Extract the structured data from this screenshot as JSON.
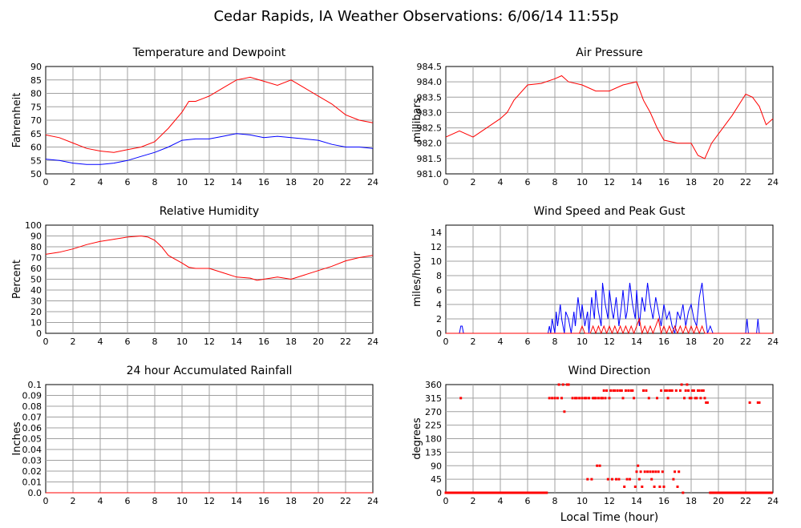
{
  "page": {
    "title": "Cedar Rapids, IA Weather Observations: 6/06/14 11:55p",
    "footer_xlabel": "Local Time (hour)"
  },
  "colors": {
    "red": "#ff0000",
    "blue": "#0000ff",
    "grid": "#a0a0a0",
    "axis": "#000000"
  },
  "chart_data": [
    {
      "id": "temp",
      "type": "line",
      "title": "Temperature and Dewpoint",
      "xlabel": "",
      "ylabel": "Fahrenheit",
      "xlim": [
        0,
        24
      ],
      "ylim": [
        50,
        90
      ],
      "xticks": [
        "0",
        "2",
        "4",
        "6",
        "8",
        "10",
        "12",
        "14",
        "16",
        "18",
        "20",
        "22",
        "24"
      ],
      "yticks": [
        "50",
        "55",
        "60",
        "65",
        "70",
        "75",
        "80",
        "85",
        "90"
      ],
      "grid": true,
      "series": [
        {
          "color": "#ff0000",
          "x": [
            0,
            1,
            2,
            3,
            4,
            5,
            6,
            7,
            8,
            9,
            10,
            10.5,
            11,
            12,
            13,
            14,
            15,
            16,
            17,
            18,
            19,
            20,
            21,
            22,
            23,
            24
          ],
          "y": [
            64.5,
            63.5,
            61.5,
            59.5,
            58.5,
            58,
            59,
            60,
            62,
            67,
            73,
            77,
            77,
            79,
            82,
            85,
            86,
            84.5,
            83,
            85,
            82,
            79,
            76,
            72,
            70,
            69
          ]
        },
        {
          "color": "#0000ff",
          "x": [
            0,
            1,
            2,
            3,
            4,
            5,
            6,
            7,
            8,
            9,
            10,
            11,
            12,
            13,
            14,
            15,
            16,
            17,
            18,
            19,
            20,
            21,
            22,
            23,
            24
          ],
          "y": [
            55.5,
            55,
            54,
            53.5,
            53.5,
            54,
            55,
            56.5,
            58,
            60,
            62.5,
            63,
            63,
            64,
            65,
            64.5,
            63.5,
            64,
            63.5,
            63,
            62.5,
            61,
            60,
            60,
            59.5
          ]
        }
      ]
    },
    {
      "id": "pressure",
      "type": "line",
      "title": "Air Pressure",
      "xlabel": "",
      "ylabel": "millibars",
      "xlim": [
        0,
        24
      ],
      "ylim": [
        981.0,
        984.5
      ],
      "xticks": [
        "0",
        "2",
        "4",
        "6",
        "8",
        "10",
        "12",
        "14",
        "16",
        "18",
        "20",
        "22",
        "24"
      ],
      "yticks": [
        "981.0",
        "981.5",
        "982.0",
        "982.5",
        "983.0",
        "983.5",
        "984.0",
        "984.5"
      ],
      "grid": true,
      "series": [
        {
          "color": "#ff0000",
          "x": [
            0,
            1,
            2,
            3,
            4,
            4.5,
            5,
            6,
            7,
            8,
            8.5,
            9,
            10,
            11,
            12,
            13,
            14,
            14.5,
            15,
            15.5,
            16,
            17,
            18,
            18.5,
            19,
            19.5,
            20,
            21,
            22,
            22.5,
            23,
            23.5,
            24
          ],
          "y": [
            982.2,
            982.4,
            982.2,
            982.5,
            982.8,
            983.0,
            983.4,
            983.9,
            983.95,
            984.1,
            984.2,
            984.0,
            983.9,
            983.7,
            983.7,
            983.9,
            984.0,
            983.4,
            983.0,
            982.5,
            982.1,
            982.0,
            982.0,
            981.6,
            981.5,
            982.0,
            982.3,
            982.9,
            983.6,
            983.5,
            983.2,
            982.6,
            982.8
          ]
        }
      ]
    },
    {
      "id": "humidity",
      "type": "line",
      "title": "Relative Humidity",
      "xlabel": "",
      "ylabel": "Percent",
      "xlim": [
        0,
        24
      ],
      "ylim": [
        0,
        100
      ],
      "xticks": [
        "0",
        "2",
        "4",
        "6",
        "8",
        "10",
        "12",
        "14",
        "16",
        "18",
        "20",
        "22",
        "24"
      ],
      "yticks": [
        "0",
        "10",
        "20",
        "30",
        "40",
        "50",
        "60",
        "70",
        "80",
        "90",
        "100"
      ],
      "grid": true,
      "series": [
        {
          "color": "#ff0000",
          "x": [
            0,
            1,
            2,
            3,
            4,
            5,
            6,
            7,
            7.5,
            8,
            8.5,
            9,
            10,
            10.5,
            11,
            12,
            13,
            14,
            15,
            15.5,
            16,
            17,
            18,
            19,
            20,
            21,
            22,
            23,
            24
          ],
          "y": [
            73,
            75,
            78,
            82,
            85,
            87,
            89,
            90,
            89,
            86,
            80,
            72,
            65,
            61,
            60,
            60,
            56,
            52,
            51,
            49,
            50,
            52,
            50,
            54,
            58,
            62,
            67,
            70,
            72
          ]
        }
      ]
    },
    {
      "id": "wind",
      "type": "line",
      "title": "Wind Speed and Peak Gust",
      "xlabel": "",
      "ylabel": "miles/hour",
      "xlim": [
        0,
        24
      ],
      "ylim": [
        0,
        15
      ],
      "xticks": [
        "0",
        "2",
        "4",
        "6",
        "8",
        "10",
        "12",
        "14",
        "16",
        "18",
        "20",
        "22",
        "24"
      ],
      "yticks": [
        "0",
        "2",
        "4",
        "6",
        "8",
        "10",
        "12",
        "14"
      ],
      "grid": true,
      "series": [
        {
          "color": "#0000ff",
          "x": [
            0,
            1.0,
            1.1,
            1.2,
            1.3,
            7.5,
            7.6,
            7.7,
            7.8,
            8.0,
            8.1,
            8.2,
            8.4,
            8.5,
            8.7,
            8.8,
            9.0,
            9.2,
            9.4,
            9.5,
            9.7,
            9.9,
            10.0,
            10.2,
            10.4,
            10.5,
            10.7,
            10.9,
            11.0,
            11.2,
            11.4,
            11.5,
            11.7,
            11.9,
            12.0,
            12.2,
            12.3,
            12.5,
            12.7,
            12.9,
            13.0,
            13.2,
            13.3,
            13.5,
            13.7,
            13.9,
            14.0,
            14.2,
            14.4,
            14.6,
            14.8,
            15.0,
            15.2,
            15.4,
            15.6,
            15.8,
            16.0,
            16.2,
            16.4,
            16.6,
            16.8,
            17.0,
            17.2,
            17.4,
            17.6,
            17.8,
            18.0,
            18.2,
            18.4,
            18.6,
            18.8,
            19.0,
            19.2,
            19.4,
            19.6,
            22.0,
            22.1,
            22.2,
            22.8,
            22.9,
            23.0
          ],
          "y": [
            0,
            0,
            1,
            1,
            0,
            0,
            1,
            0,
            2,
            0,
            3,
            1,
            4,
            2,
            0,
            3,
            2,
            0,
            3,
            1,
            5,
            2,
            4,
            1,
            3,
            0,
            5,
            2,
            6,
            3,
            1,
            7,
            4,
            2,
            6,
            3,
            2,
            5,
            1,
            4,
            6,
            2,
            3,
            7,
            4,
            2,
            6,
            1,
            5,
            3,
            7,
            4,
            2,
            5,
            3,
            1,
            4,
            2,
            3,
            1,
            0,
            3,
            2,
            4,
            1,
            3,
            4,
            2,
            1,
            5,
            7,
            3,
            0,
            1,
            0,
            0,
            2,
            0,
            0,
            2,
            0
          ]
        },
        {
          "color": "#ff0000",
          "x": [
            0,
            9.8,
            10.0,
            10.2,
            10.6,
            10.8,
            11.0,
            11.2,
            11.4,
            11.6,
            11.8,
            12.0,
            12.2,
            12.4,
            12.6,
            12.8,
            13.0,
            13.2,
            13.4,
            13.6,
            13.8,
            14.0,
            14.2,
            14.4,
            14.6,
            14.8,
            15.0,
            15.2,
            15.4,
            15.6,
            15.8,
            16.0,
            16.2,
            16.4,
            16.6,
            16.8,
            17.0,
            17.2,
            17.4,
            17.6,
            17.8,
            18.0,
            18.2,
            18.4,
            18.6,
            18.8,
            19.0,
            19.2,
            24
          ],
          "y": [
            0,
            0,
            1,
            0,
            0,
            1,
            0,
            1,
            0,
            1,
            0,
            1,
            0,
            1,
            0,
            1,
            0,
            1,
            0,
            1,
            0,
            1,
            2,
            0,
            1,
            0,
            1,
            0,
            1,
            2,
            0,
            1,
            0,
            1,
            0,
            1,
            0,
            1,
            0,
            1,
            0,
            1,
            0,
            1,
            0,
            1,
            0,
            0,
            0
          ]
        }
      ]
    },
    {
      "id": "rain",
      "type": "line",
      "title": "24 hour Accumulated Rainfall",
      "xlabel": "",
      "ylabel": "Inches",
      "xlim": [
        0,
        24
      ],
      "ylim": [
        0.0,
        0.1
      ],
      "xticks": [
        "0",
        "2",
        "4",
        "6",
        "8",
        "10",
        "12",
        "14",
        "16",
        "18",
        "20",
        "22",
        "24"
      ],
      "yticks": [
        "0.0",
        "0.01",
        "0.02",
        "0.03",
        "0.04",
        "0.05",
        "0.06",
        "0.07",
        "0.08",
        "0.09",
        "0.1"
      ],
      "grid": true,
      "series": [
        {
          "color": "#ff0000",
          "x": [
            0,
            24
          ],
          "y": [
            0,
            0
          ]
        }
      ]
    },
    {
      "id": "direction",
      "type": "scatter",
      "title": "Wind Direction",
      "xlabel": "Local Time (hour)",
      "ylabel": "degrees",
      "xlim": [
        0,
        24
      ],
      "ylim": [
        0,
        360
      ],
      "xticks": [
        "0",
        "2",
        "4",
        "6",
        "8",
        "10",
        "12",
        "14",
        "16",
        "18",
        "20",
        "22",
        "24"
      ],
      "yticks": [
        "0",
        "45",
        "90",
        "135",
        "180",
        "225",
        "270",
        "315",
        "360"
      ],
      "grid": true,
      "series": [
        {
          "color": "#ff0000",
          "x": [
            1.1,
            7.6,
            7.8,
            8.0,
            8.2,
            8.3,
            8.5,
            8.6,
            8.7,
            8.9,
            9.0,
            9.3,
            9.5,
            9.6,
            9.8,
            10.0,
            10.2,
            10.3,
            10.4,
            10.5,
            10.7,
            10.8,
            10.9,
            11.0,
            11.1,
            11.2,
            11.3,
            11.4,
            11.5,
            11.6,
            11.7,
            11.8,
            11.9,
            12.0,
            12.1,
            12.2,
            12.3,
            12.4,
            12.5,
            12.6,
            12.7,
            12.8,
            12.9,
            13.0,
            13.1,
            13.2,
            13.3,
            13.4,
            13.5,
            13.6,
            13.7,
            13.8,
            13.9,
            14.0,
            14.1,
            14.2,
            14.3,
            14.4,
            14.5,
            14.6,
            14.7,
            14.8,
            14.9,
            15.0,
            15.1,
            15.2,
            15.3,
            15.4,
            15.5,
            15.6,
            15.7,
            15.8,
            15.9,
            16.0,
            16.1,
            16.2,
            16.3,
            16.4,
            16.5,
            16.6,
            16.7,
            16.8,
            16.9,
            17.0,
            17.1,
            17.2,
            17.3,
            17.4,
            17.5,
            17.6,
            17.7,
            17.8,
            17.9,
            18.0,
            18.1,
            18.2,
            18.3,
            18.4,
            18.5,
            18.6,
            18.7,
            18.8,
            18.9,
            19.0,
            19.1,
            19.2,
            22.3,
            22.9,
            23.0
          ],
          "y": [
            315,
            315,
            315,
            315,
            315,
            360,
            315,
            360,
            270,
            360,
            360,
            315,
            315,
            315,
            315,
            315,
            315,
            315,
            45,
            315,
            45,
            315,
            315,
            315,
            90,
            315,
            90,
            315,
            315,
            340,
            315,
            340,
            45,
            315,
            340,
            45,
            340,
            340,
            45,
            340,
            45,
            340,
            340,
            315,
            20,
            340,
            45,
            340,
            45,
            340,
            340,
            315,
            20,
            70,
            90,
            45,
            70,
            20,
            340,
            70,
            340,
            70,
            315,
            70,
            45,
            70,
            20,
            70,
            315,
            70,
            20,
            340,
            70,
            20,
            340,
            340,
            315,
            340,
            340,
            340,
            45,
            70,
            340,
            20,
            70,
            340,
            360,
            0,
            315,
            340,
            360,
            340,
            315,
            315,
            340,
            340,
            315,
            315,
            340,
            340,
            315,
            340,
            340,
            315,
            300,
            300,
            300,
            300,
            300
          ]
        }
      ]
    }
  ]
}
